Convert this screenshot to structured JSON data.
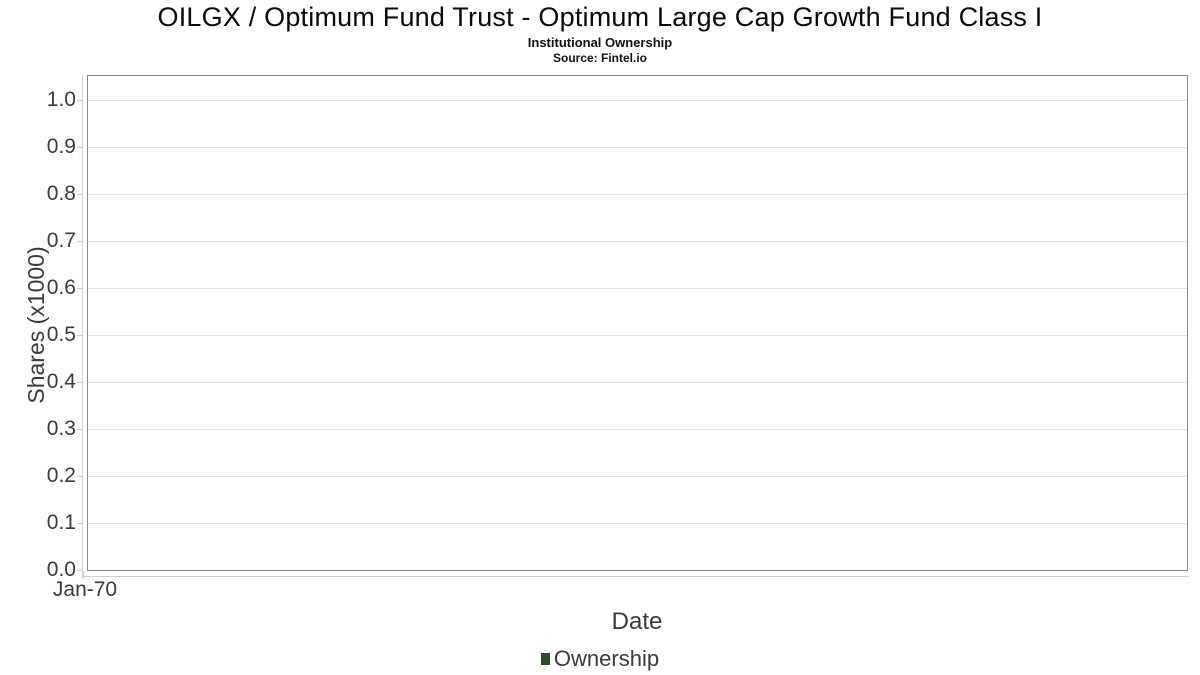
{
  "header": {
    "title": "OILGX / Optimum Fund Trust - Optimum Large Cap Growth Fund Class I",
    "subtitle": "Institutional Ownership",
    "source": "Source: Fintel.io"
  },
  "axes": {
    "x_label": "Date",
    "y_label": "Shares (x1000)",
    "x_tick_labels": [
      "Jan-70"
    ],
    "y_tick_labels": [
      "0.0",
      "0.1",
      "0.2",
      "0.3",
      "0.4",
      "0.5",
      "0.6",
      "0.7",
      "0.8",
      "0.9",
      "1.0"
    ]
  },
  "legend": {
    "items": [
      {
        "label": "Ownership",
        "color": "#265429"
      }
    ]
  },
  "colors": {
    "plot_border": "#8a8a8a",
    "gridline": "#e4e4e4",
    "tick": "#cfcfcf",
    "text": "#3b3b3b",
    "series": "#265429"
  },
  "chart_data": {
    "type": "line",
    "title": "OILGX / Optimum Fund Trust - Optimum Large Cap Growth Fund Class I",
    "subtitle": "Institutional Ownership",
    "source": "Source: Fintel.io",
    "xlabel": "Date",
    "ylabel": "Shares (x1000)",
    "x_ticks": [
      "Jan-70"
    ],
    "y_ticks": [
      0.0,
      0.1,
      0.2,
      0.3,
      0.4,
      0.5,
      0.6,
      0.7,
      0.8,
      0.9,
      1.0
    ],
    "ylim": [
      0.0,
      1.05
    ],
    "grid": true,
    "legend_position": "bottom",
    "series": [
      {
        "name": "Ownership",
        "color": "#265429",
        "x": [],
        "y": []
      }
    ]
  }
}
